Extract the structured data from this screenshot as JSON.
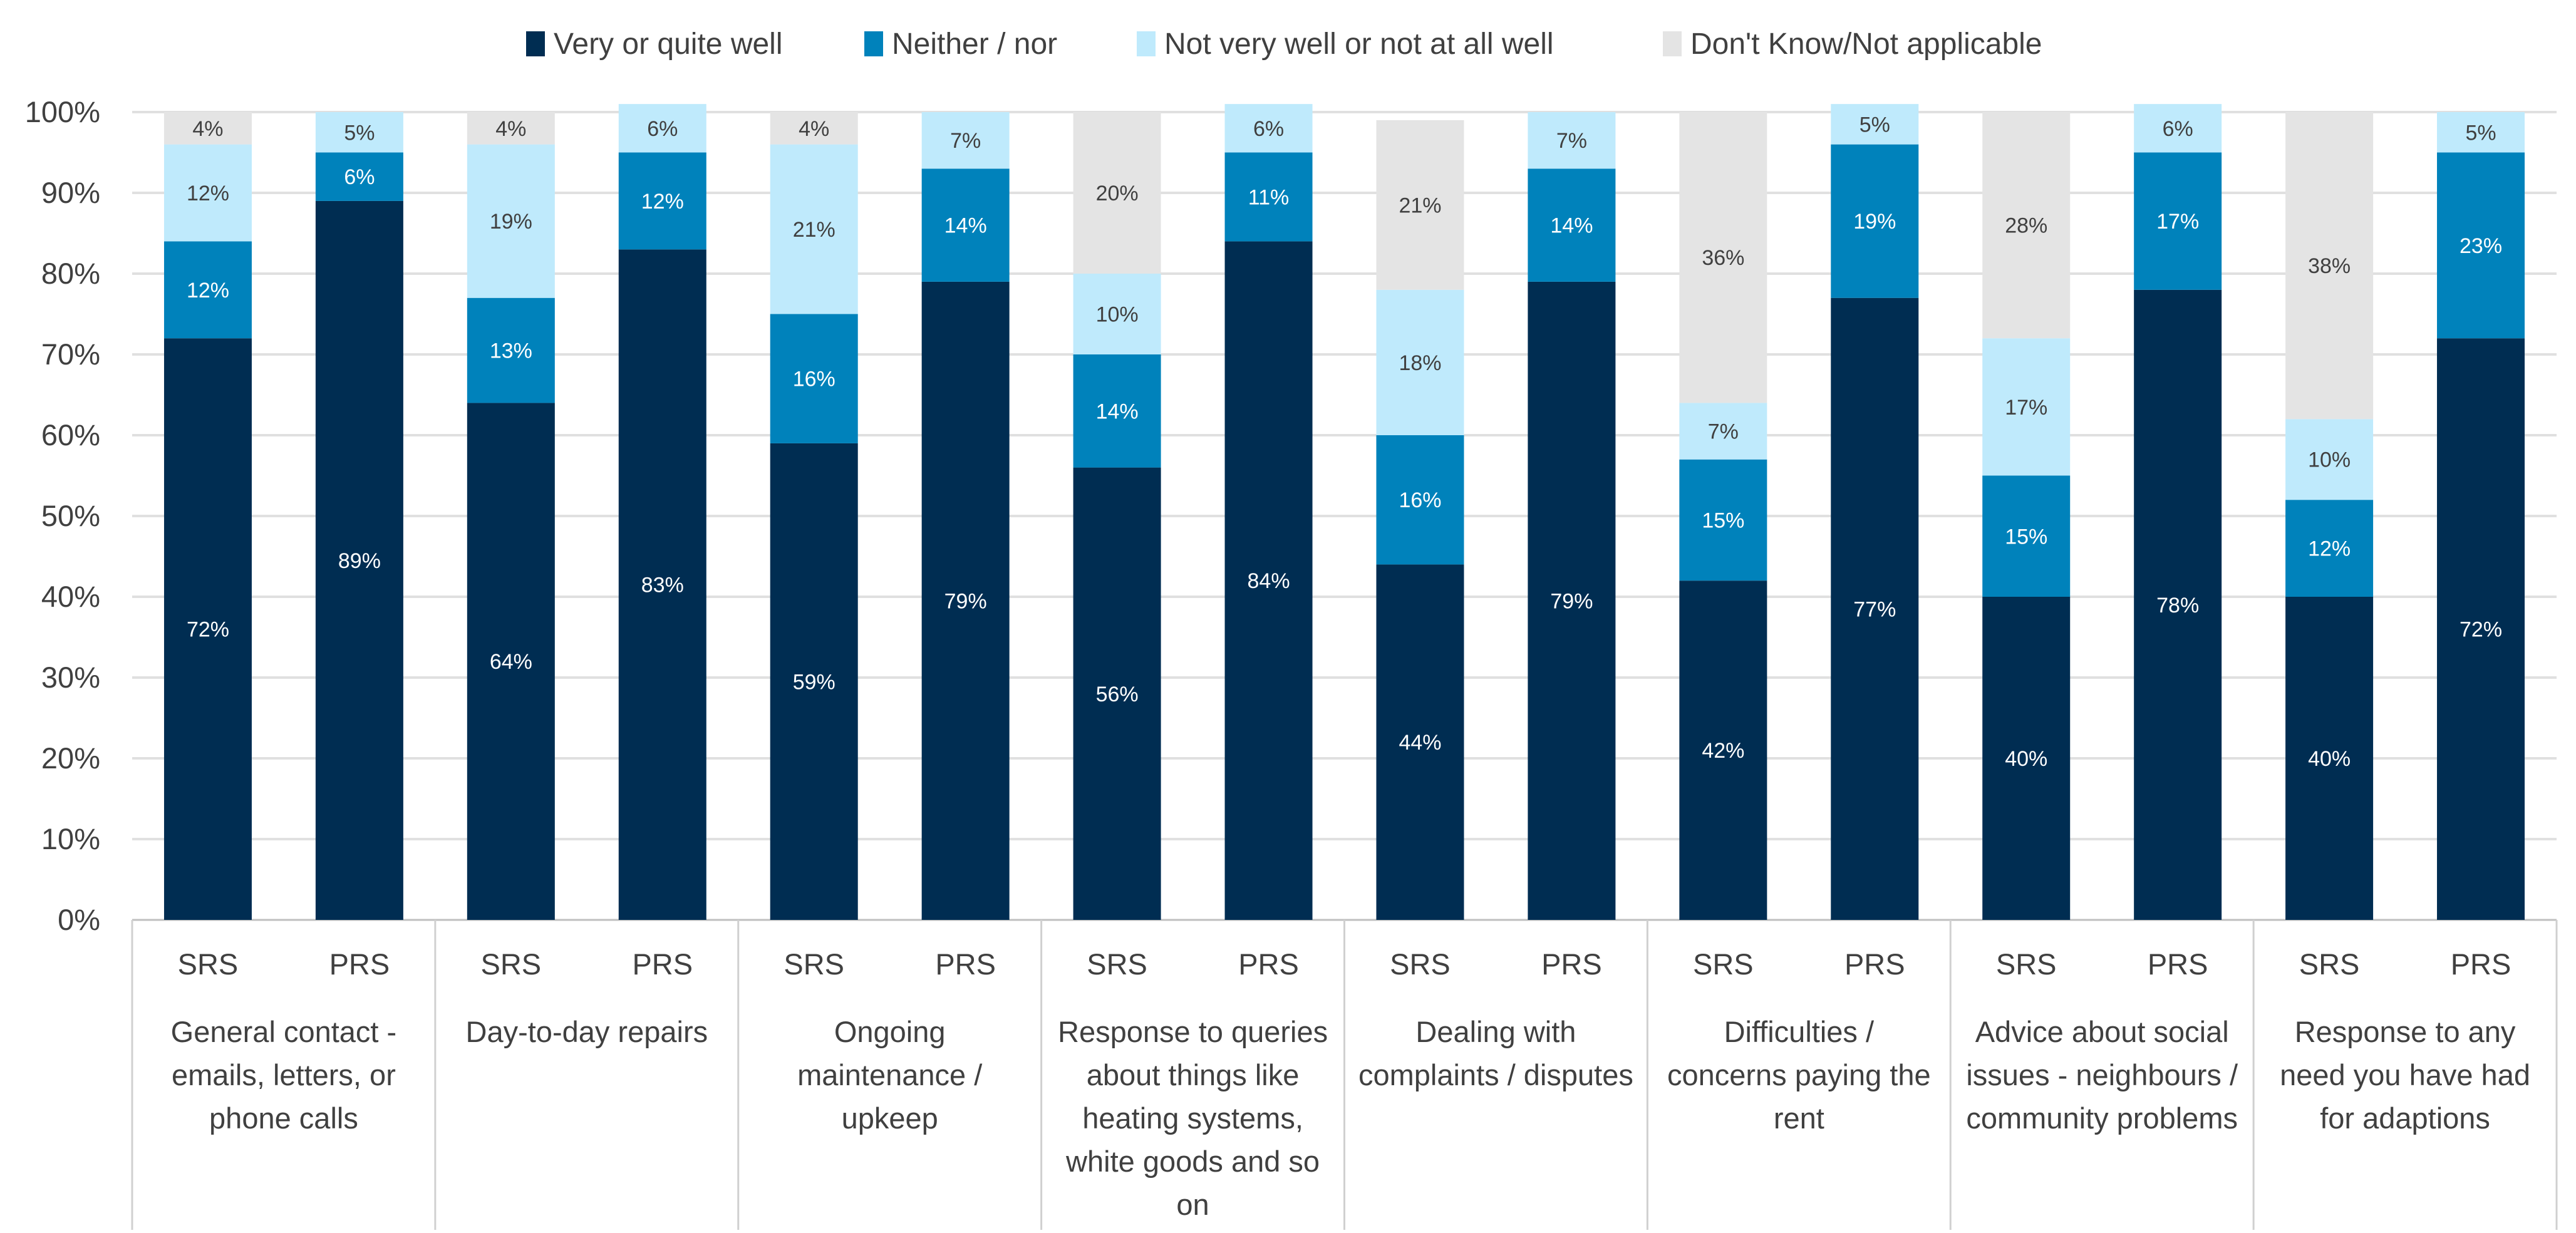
{
  "chart_data": {
    "type": "bar",
    "stacked": true,
    "title": "",
    "xlabel": "",
    "ylabel": "",
    "ylim": [
      0,
      100
    ],
    "yticks": [
      "0%",
      "10%",
      "20%",
      "30%",
      "40%",
      "50%",
      "60%",
      "70%",
      "80%",
      "90%",
      "100%"
    ],
    "grid": true,
    "legend_position": "top",
    "groups": [
      "General contact - emails, letters, or phone calls",
      "Day-to-day repairs",
      "Ongoing maintenance / upkeep",
      "Response to queries about things like heating systems, white goods and so on",
      "Dealing with complaints / disputes",
      "Difficulties / concerns paying the rent",
      "Advice about social issues - neighbours / community problems",
      "Response to any need you have had for adaptions"
    ],
    "group_label_lines": [
      [
        "General contact -",
        "emails, letters, or",
        "phone calls"
      ],
      [
        "Day-to-day repairs"
      ],
      [
        "Ongoing",
        "maintenance /",
        "upkeep"
      ],
      [
        "Response to queries",
        "about things like",
        "heating systems,",
        "white goods and so",
        "on"
      ],
      [
        "Dealing with",
        "complaints / disputes"
      ],
      [
        "Difficulties /",
        "concerns paying the",
        "rent"
      ],
      [
        "Advice about social",
        "issues - neighbours /",
        "community problems"
      ],
      [
        "Response to any",
        "need you have had",
        "for adaptions"
      ]
    ],
    "categories": [
      "SRS",
      "PRS",
      "SRS",
      "PRS",
      "SRS",
      "PRS",
      "SRS",
      "PRS",
      "SRS",
      "PRS",
      "SRS",
      "PRS",
      "SRS",
      "PRS",
      "SRS",
      "PRS"
    ],
    "series": [
      {
        "name": "Very or quite well",
        "color": "#002d52",
        "label_color": "#ffffff",
        "values": [
          72,
          89,
          64,
          83,
          59,
          79,
          56,
          84,
          44,
          79,
          42,
          77,
          40,
          78,
          40,
          72
        ]
      },
      {
        "name": "Neither / nor",
        "color": "#0082bb",
        "label_color": "#ffffff",
        "values": [
          12,
          6,
          13,
          12,
          16,
          14,
          14,
          11,
          16,
          14,
          15,
          19,
          15,
          17,
          12,
          23
        ]
      },
      {
        "name": "Not very well or not at all well",
        "color": "#bfeafc",
        "label_color": "#404040",
        "values": [
          12,
          5,
          19,
          6,
          21,
          7,
          10,
          6,
          18,
          7,
          7,
          5,
          17,
          6,
          10,
          5
        ]
      },
      {
        "name": "Don't Know/Not applicable",
        "color": "#e4e4e4",
        "label_color": "#404040",
        "values": [
          4,
          null,
          4,
          null,
          4,
          null,
          20,
          null,
          21,
          null,
          36,
          null,
          28,
          null,
          38,
          null
        ]
      }
    ]
  }
}
